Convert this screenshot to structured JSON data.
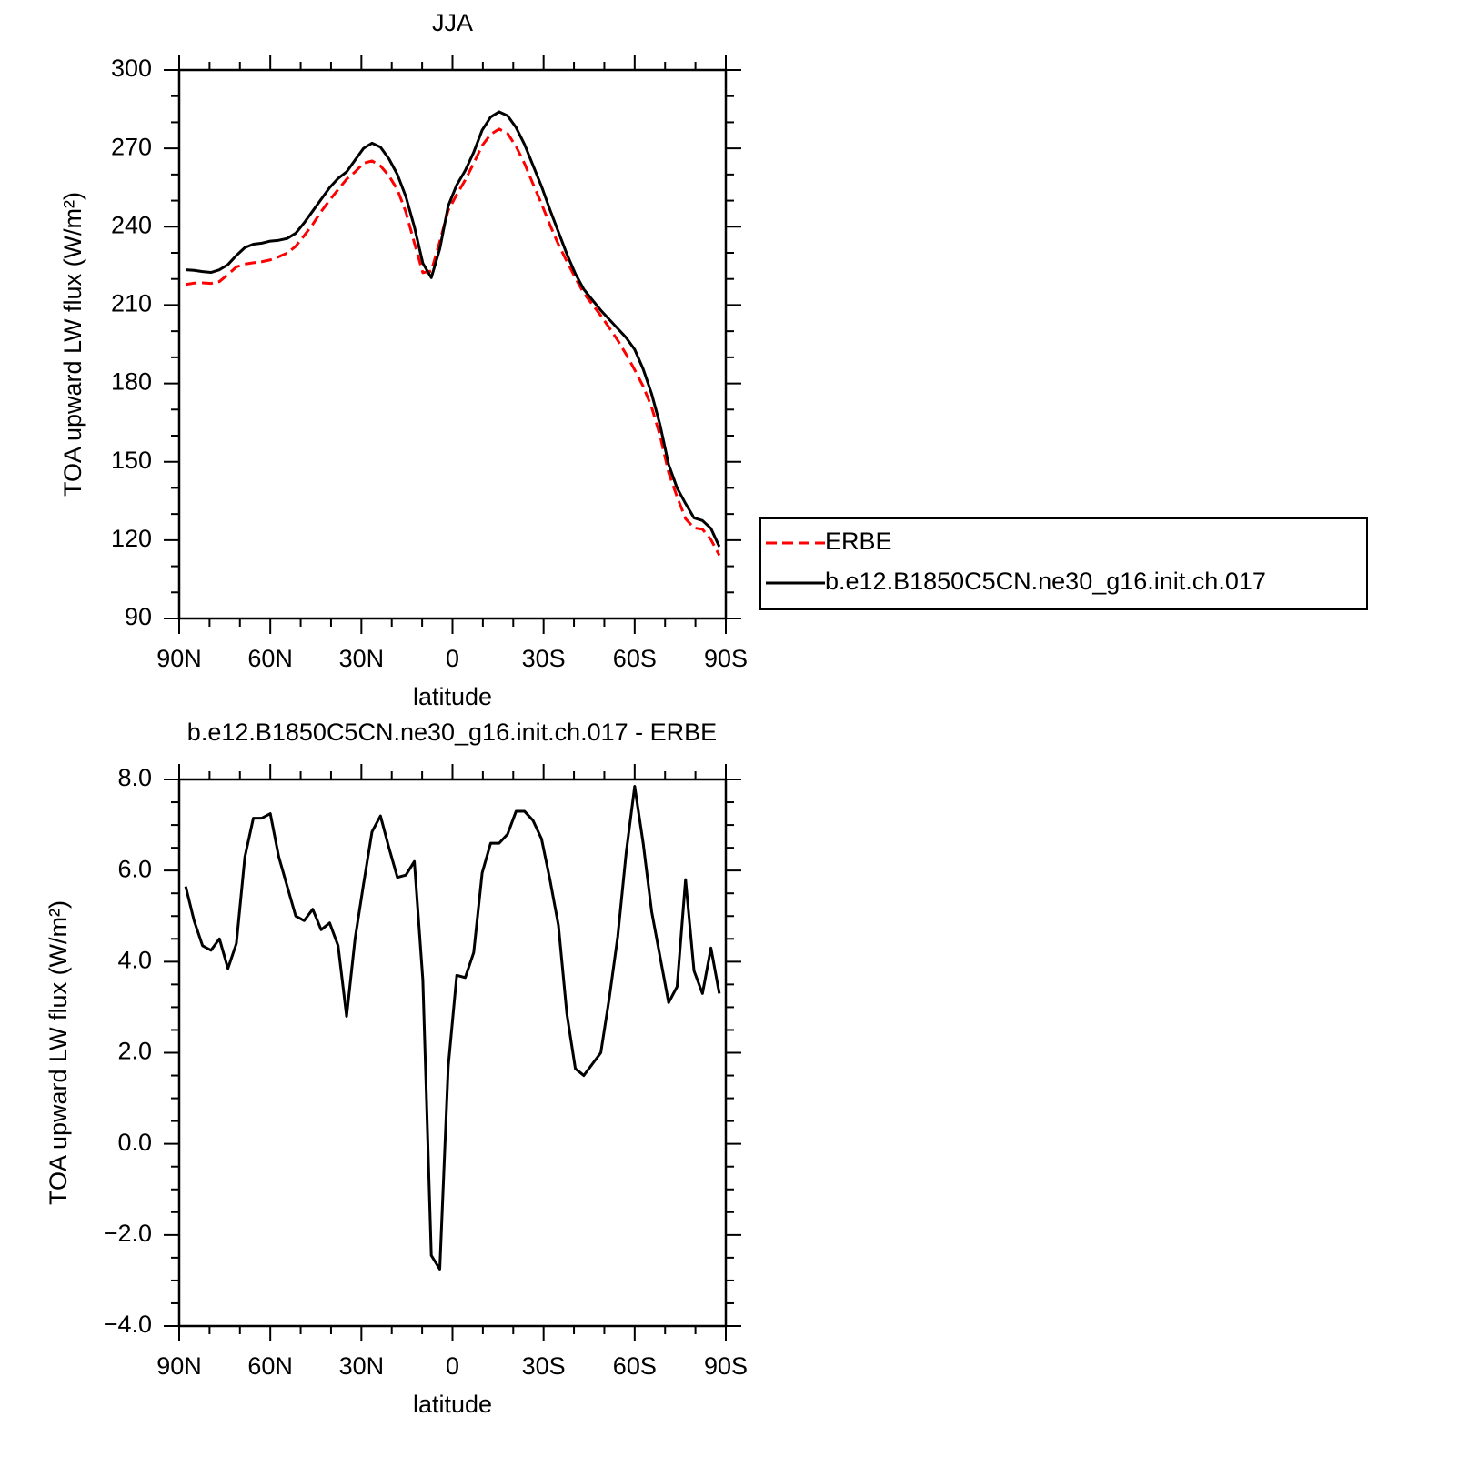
{
  "chart_data": [
    {
      "type": "line",
      "title": "JJA",
      "x_label": "latitude",
      "y_label": "TOA upward LW flux (W/m²)",
      "x": [
        87.86,
        85.1,
        82.31,
        79.53,
        76.74,
        73.95,
        71.16,
        68.37,
        65.58,
        62.79,
        60.0,
        57.21,
        54.42,
        51.63,
        48.84,
        46.04,
        43.25,
        40.46,
        37.67,
        34.88,
        32.09,
        29.3,
        26.51,
        23.72,
        20.93,
        18.14,
        15.35,
        12.56,
        9.77,
        6.98,
        4.19,
        1.4,
        -1.4,
        -4.19,
        -6.98,
        -9.77,
        -12.56,
        -15.35,
        -18.14,
        -20.93,
        -23.72,
        -26.51,
        -29.3,
        -32.09,
        -34.88,
        -37.67,
        -40.46,
        -43.25,
        -46.04,
        -48.84,
        -51.63,
        -54.42,
        -57.21,
        -60.0,
        -62.79,
        -65.58,
        -68.37,
        -71.16,
        -73.95,
        -76.74,
        -79.53,
        -82.31,
        -85.1,
        -87.86
      ],
      "series": [
        {
          "name": "ERBE",
          "color": "#ff0000",
          "dashed": true,
          "values": [
            217.9,
            218.4,
            218.5,
            218.3,
            219.0,
            221.7,
            224.6,
            225.7,
            226.2,
            226.6,
            227.3,
            228.5,
            229.9,
            232.5,
            236.6,
            240.9,
            245.8,
            250.2,
            254.2,
            258.2,
            261.0,
            264.3,
            265.2,
            263.3,
            259.5,
            254.2,
            245.6,
            233.8,
            222.4,
            223.0,
            234.3,
            246.3,
            252.3,
            257.9,
            264.3,
            271.1,
            275.4,
            277.4,
            275.7,
            270.7,
            264.2,
            256.4,
            248.8,
            240.7,
            233.2,
            226.7,
            220.4,
            214.5,
            210.3,
            206.0,
            201.3,
            196.5,
            191.1,
            185.2,
            178.9,
            170.9,
            159.9,
            145.9,
            136.6,
            128.2,
            124.7,
            124.2,
            120.2,
            114.2
          ]
        },
        {
          "name": "b.e12.B1850C5CN.ne30_g16.init.ch.017",
          "color": "#000000",
          "dashed": false,
          "values": [
            223.5,
            223.3,
            222.8,
            222.5,
            223.5,
            225.5,
            229,
            232,
            233.3,
            233.7,
            234.5,
            234.8,
            235.5,
            237.5,
            241.5,
            246,
            250.5,
            255,
            258.5,
            261,
            265.5,
            270,
            272,
            270.5,
            266,
            260,
            251.5,
            240,
            226,
            220.5,
            231.5,
            248,
            256,
            261.5,
            268.5,
            277,
            282,
            284,
            282.5,
            278,
            271.5,
            263.5,
            255.5,
            246.5,
            238,
            229.5,
            222,
            216,
            212,
            208,
            204.5,
            201,
            197.5,
            193,
            185.5,
            176,
            164,
            149,
            140,
            134,
            128.5,
            127.5,
            124.5,
            117.5
          ]
        }
      ],
      "xlim": [
        90,
        -90
      ],
      "xticks": [
        {
          "value": 90,
          "label": "90N"
        },
        {
          "value": 60,
          "label": "60N"
        },
        {
          "value": 30,
          "label": "30N"
        },
        0,
        {
          "value": -30,
          "label": "30S"
        },
        {
          "value": -60,
          "label": "60S"
        },
        {
          "value": -90,
          "label": "90S"
        }
      ],
      "ylim": [
        90,
        300
      ],
      "yticks": [
        90,
        120,
        150,
        180,
        210,
        240,
        270,
        300
      ],
      "legend": "outside-right"
    },
    {
      "type": "line",
      "title": "b.e12.B1850C5CN.ne30_g16.init.ch.017 - ERBE",
      "x_label": "latitude",
      "y_label": "TOA upward LW flux (W/m²)",
      "x": [
        87.86,
        85.1,
        82.31,
        79.53,
        76.74,
        73.95,
        71.16,
        68.37,
        65.58,
        62.79,
        60.0,
        57.21,
        54.42,
        51.63,
        48.84,
        46.04,
        43.25,
        40.46,
        37.67,
        34.88,
        32.09,
        29.3,
        26.51,
        23.72,
        20.93,
        18.14,
        15.35,
        12.56,
        9.77,
        6.98,
        4.19,
        1.4,
        -1.4,
        -4.19,
        -6.98,
        -9.77,
        -12.56,
        -15.35,
        -18.14,
        -20.93,
        -23.72,
        -26.51,
        -29.3,
        -32.09,
        -34.88,
        -37.67,
        -40.46,
        -43.25,
        -46.04,
        -48.84,
        -51.63,
        -54.42,
        -57.21,
        -60.0,
        -62.79,
        -65.58,
        -68.37,
        -71.16,
        -73.95,
        -76.74,
        -79.53,
        -82.31,
        -85.1,
        -87.86
      ],
      "series": [
        {
          "color": "#000000",
          "dashed": false,
          "values": [
            5.65,
            4.9,
            4.35,
            4.25,
            4.5,
            3.85,
            4.4,
            6.3,
            7.15,
            7.15,
            7.25,
            6.3,
            5.65,
            5.0,
            4.9,
            5.15,
            4.7,
            4.85,
            4.35,
            2.8,
            4.5,
            5.7,
            6.85,
            7.2,
            6.5,
            5.85,
            5.9,
            6.2,
            3.6,
            -2.45,
            -2.75,
            1.7,
            3.7,
            3.65,
            4.2,
            5.95,
            6.6,
            6.6,
            6.8,
            7.3,
            7.3,
            7.1,
            6.7,
            5.8,
            4.8,
            2.85,
            1.65,
            1.5,
            1.75,
            2.0,
            3.2,
            4.55,
            6.4,
            7.85,
            6.6,
            5.1,
            4.1,
            3.1,
            3.45,
            5.8,
            3.8,
            3.3,
            4.3,
            3.3
          ]
        }
      ],
      "xlim": [
        90,
        -90
      ],
      "xticks": [
        {
          "value": 90,
          "label": "90N"
        },
        {
          "value": 60,
          "label": "60N"
        },
        {
          "value": 30,
          "label": "30N"
        },
        0,
        {
          "value": -30,
          "label": "30S"
        },
        {
          "value": -60,
          "label": "60S"
        },
        {
          "value": -90,
          "label": "90S"
        }
      ],
      "ylim": [
        -4,
        8
      ],
      "yticks": [
        {
          "value": -4,
          "label": "−4.0"
        },
        {
          "value": -2,
          "label": "−2.0"
        },
        {
          "value": 0,
          "label": "0.0"
        },
        {
          "value": 2,
          "label": "2.0"
        },
        {
          "value": 4,
          "label": "4.0"
        },
        {
          "value": 6,
          "label": "6.0"
        },
        {
          "value": 8,
          "label": "8.0"
        }
      ]
    }
  ]
}
